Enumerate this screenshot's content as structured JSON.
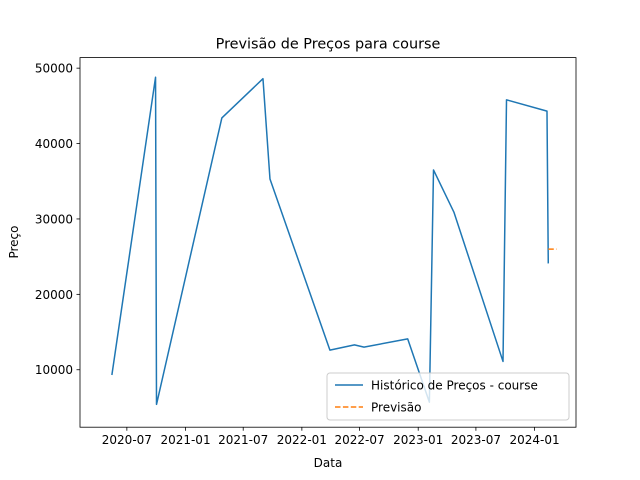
{
  "chart_data": {
    "type": "line",
    "title": "Previsão de Preços para course",
    "xlabel": "Data",
    "ylabel": "Preço",
    "x_is_date": true,
    "xlim": [
      "2020-02-05",
      "2024-05-10"
    ],
    "ylim": [
      2380,
      51400
    ],
    "x_ticks": [
      "2020-07-01",
      "2021-01-01",
      "2021-07-01",
      "2022-01-01",
      "2022-07-01",
      "2023-01-01",
      "2023-07-01",
      "2024-01-01"
    ],
    "x_tick_labels": [
      "2020-07",
      "2021-01",
      "2021-07",
      "2022-01",
      "2022-07",
      "2023-01",
      "2023-07",
      "2024-01"
    ],
    "y_ticks": [
      10000,
      20000,
      30000,
      40000,
      50000
    ],
    "y_tick_labels": [
      "10000",
      "20000",
      "30000",
      "40000",
      "50000"
    ],
    "grid": false,
    "legend_position": "lower-right",
    "series": [
      {
        "name": "Histórico de Preços - course",
        "color": "#1f77b4",
        "style": "solid",
        "points": [
          {
            "x": "2020-05-15",
            "y": 9300
          },
          {
            "x": "2020-09-29",
            "y": 48800
          },
          {
            "x": "2020-10-02",
            "y": 5400
          },
          {
            "x": "2021-04-25",
            "y": 43400
          },
          {
            "x": "2021-09-01",
            "y": 48600
          },
          {
            "x": "2021-09-23",
            "y": 35300
          },
          {
            "x": "2022-03-30",
            "y": 12600
          },
          {
            "x": "2022-06-15",
            "y": 13300
          },
          {
            "x": "2022-07-15",
            "y": 13000
          },
          {
            "x": "2022-11-29",
            "y": 14100
          },
          {
            "x": "2023-02-05",
            "y": 5700
          },
          {
            "x": "2023-02-18",
            "y": 36500
          },
          {
            "x": "2023-04-23",
            "y": 30900
          },
          {
            "x": "2023-09-24",
            "y": 11100
          },
          {
            "x": "2023-10-05",
            "y": 45800
          },
          {
            "x": "2024-02-09",
            "y": 44300
          },
          {
            "x": "2024-02-13",
            "y": 24100
          }
        ]
      },
      {
        "name": "Previsão",
        "color": "#ff7f0e",
        "style": "dashed",
        "points": [
          {
            "x": "2024-02-13",
            "y": 26000
          },
          {
            "x": "2024-03-10",
            "y": 26000
          }
        ]
      }
    ]
  }
}
